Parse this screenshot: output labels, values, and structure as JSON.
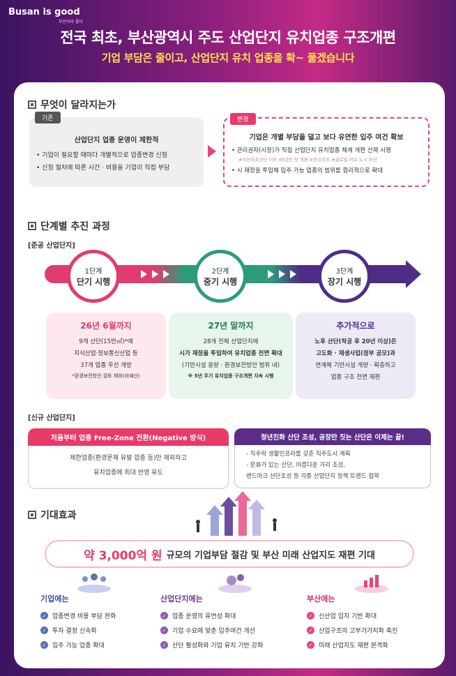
{
  "header": {
    "logo": "Busan is good",
    "logo_sub": "부산이라 좋다",
    "title": "전국 최초, 부산광역시 주도 산업단지 유치업종 구조개편",
    "subtitle": "기업 부담은 줄이고, 산업단지 유치 업종을 확~ 풀겠습니다"
  },
  "section1": {
    "heading": "무엇이 달라지는가",
    "old": {
      "tag": "기존",
      "head": "산업단지 업종 운영이 제한적",
      "items": [
        "• 기업이 필요할 때마다 개별적으로 업종변경 신청",
        "• 신청 절차에 따른 시간 · 비용을 기업이 직접 부담"
      ]
    },
    "new": {
      "tag": "변경",
      "head": "기업은 개별 부담을 덜고 보다 유연한 입주 여건 확보",
      "item1": "• 관리권자(시장)가 직접 산업단지 유치업종 체계 개편 선제 시행",
      "hashtags": "#부산최초산단 이후 46년만 첫 개편 #전국최초 #글로벌 허브 도시 부산",
      "item2": "• 시 재정을 투입해 입주 가능 업종의 범위를 합리적으로 확대"
    }
  },
  "section2": {
    "heading": "단계별 추진 과정",
    "existing_label": "[준공 산업단지]",
    "new_label": "[신규 산업단지]",
    "stages": [
      {
        "step": "1단계",
        "name": "단기 시행",
        "when": "26년 6월까지",
        "lines": [
          "9개 산단(15만㎡)*에",
          "지식산업·정보통신산업 등",
          "37개 업종 우선 개방"
        ],
        "note": "*환경보전방안 검토 제외(비예산)"
      },
      {
        "step": "2단계",
        "name": "중기 시행",
        "when": "27년 말까지",
        "lines": [
          "28개 전체 산업단지에",
          "시가 재정을 투입하여 유치업종 전면 확대",
          "(기반시설 용량 · 환경보전방안 범위 내)"
        ],
        "note": "※ 5년 주기 유치업종 구조개편 지속 시행"
      },
      {
        "step": "3단계",
        "name": "장기 시행",
        "when": "추가적으로",
        "lines": [
          "노후 산단(착공 후 20년 이상)은",
          "고도화 · 재생사업(정부 공모)과",
          "연계해 기반시설 개량 · 확충하고",
          "업종 구조 전면 재편"
        ],
        "note": ""
      }
    ],
    "new_left": {
      "head": "처음부터 업종 Free-Zone 전환(Negative 방식)",
      "lines": [
        "제한업종(환경문제 유발 업종 등)만 제외하고",
        "유치업종에 최대 반영 유도"
      ]
    },
    "new_right": {
      "head": "청년친화 산단 조성, 공장만 짓는 산단은 이제는 끝!",
      "lines": [
        "- 직주락 생활인프라를 갖춘 직주도시 계획",
        "- 문화가 있는 산단, 아름다운 거리 조성,",
        "  랜드마크 산단조성 등 각종 산업단지 정책 트렌드 접목"
      ]
    }
  },
  "section3": {
    "heading": "기대효과",
    "amount": "약 3,000억 원",
    "effect_text": "규모의 기업부담 절감 및 부산 미래 산업지도 재편 기대",
    "columns": [
      {
        "head": "기업에는",
        "items": [
          "업종변경 비용 부담 완화",
          "투자 결정 신속화",
          "입주 가능 업종 확대"
        ],
        "color": "#5a6fb8"
      },
      {
        "head": "산업단지에는",
        "items": [
          "업종 운영의 유연성 확대",
          "기업 수요에 맞춘 입주여건 개선",
          "산단 활성화와 기업 유치 기반 강화"
        ],
        "color": "#8d5ab0"
      },
      {
        "head": "부산에는",
        "items": [
          "신산업 입지 기반 확대",
          "산업구조의 고부가가치화 촉진",
          "미래 산업지도 재편 본격화"
        ],
        "color": "#e8467a"
      }
    ]
  }
}
